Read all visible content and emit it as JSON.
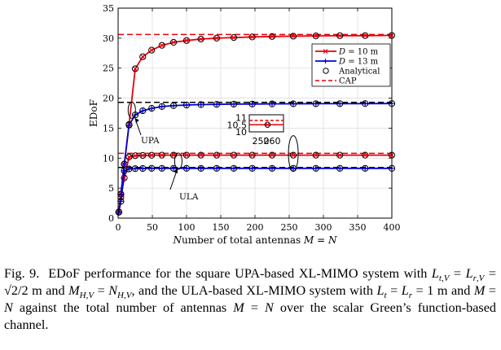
{
  "figure": {
    "caption_prefix": "Fig. 9.",
    "caption_html": "EDoF performance for the square UPA-based XL-MIMO system with <i>L</i><sub><i>t</i>,<i>V</i></sub> = <i>L</i><sub><i>r</i>,<i>V</i></sub> = √2/2 m and <i>M</i><sub><i>H</i>,<i>V</i></sub> = <i>N</i><sub><i>H</i>,<i>V</i></sub>, and the ULA-based XL-MIMO system with <i>L<sub>t</sub></i> = <i>L<sub>r</sub></i> = 1 m and <i>M</i> = <i>N</i> against the total number of antennas <i>M</i> = <i>N</i> over the scalar Green’s function-based channel."
  },
  "chart_data": {
    "type": "line",
    "title": "",
    "xlabel": "Number of total antennas M = N",
    "ylabel": "EDoF",
    "xlim": [
      0,
      400
    ],
    "ylim": [
      0,
      35
    ],
    "xticks": [
      0,
      50,
      100,
      150,
      200,
      250,
      300,
      350,
      400
    ],
    "yticks": [
      0,
      5,
      10,
      15,
      20,
      25,
      30,
      35
    ],
    "grid": true,
    "legend_placement": "upper-right (inside)",
    "legend": [
      {
        "label": "D = 10 m",
        "style": "red line, x marker"
      },
      {
        "label": "D = 13 m",
        "style": "blue line, + marker"
      },
      {
        "label": "Analytical",
        "style": "black circle"
      },
      {
        "label": "CAP",
        "style": "dashed line"
      }
    ],
    "series": [
      {
        "group": "UPA",
        "distance": "D = 10 m",
        "color": "#e8000b",
        "x": [
          1,
          4,
          9,
          16,
          25,
          36,
          49,
          64,
          81,
          100,
          121,
          144,
          169,
          196,
          225,
          256,
          289,
          324,
          361,
          400
        ],
        "y": [
          1,
          4,
          9,
          15.6,
          24.9,
          26.9,
          28.0,
          28.8,
          29.3,
          29.6,
          29.85,
          30.0,
          30.1,
          30.2,
          30.28,
          30.33,
          30.37,
          30.4,
          30.42,
          30.45
        ]
      },
      {
        "group": "UPA",
        "distance": "D = 13 m",
        "color": "#0000dd",
        "x": [
          1,
          4,
          9,
          16,
          25,
          36,
          49,
          64,
          81,
          100,
          121,
          144,
          169,
          196,
          225,
          256,
          289,
          324,
          361,
          400
        ],
        "y": [
          1,
          4,
          9,
          15.5,
          17.2,
          17.9,
          18.3,
          18.6,
          18.75,
          18.85,
          18.92,
          18.96,
          19.0,
          19.02,
          19.04,
          19.06,
          19.07,
          19.08,
          19.09,
          19.1
        ]
      },
      {
        "group": "ULA",
        "distance": "D = 10 m",
        "color": "#e8000b",
        "x": [
          1,
          4,
          9,
          16,
          25,
          36,
          49,
          64,
          81,
          100,
          121,
          144,
          169,
          196,
          225,
          256,
          289,
          324,
          361,
          400
        ],
        "y": [
          1,
          3.5,
          6.7,
          10.2,
          10.4,
          10.45,
          10.48,
          10.5,
          10.5,
          10.5,
          10.5,
          10.5,
          10.5,
          10.5,
          10.5,
          10.5,
          10.5,
          10.5,
          10.5,
          10.5
        ]
      },
      {
        "group": "ULA",
        "distance": "D = 13 m",
        "color": "#0000dd",
        "x": [
          1,
          4,
          9,
          16,
          25,
          36,
          49,
          64,
          81,
          100,
          121,
          144,
          169,
          196,
          225,
          256,
          289,
          324,
          361,
          400
        ],
        "y": [
          1,
          2.8,
          7.9,
          8.2,
          8.25,
          8.28,
          8.3,
          8.3,
          8.3,
          8.3,
          8.3,
          8.3,
          8.3,
          8.3,
          8.3,
          8.3,
          8.3,
          8.3,
          8.3,
          8.3
        ]
      }
    ],
    "cap_lines": [
      {
        "group": "UPA",
        "distance": "D = 10 m",
        "y": 30.6,
        "color": "#e8000b"
      },
      {
        "group": "UPA",
        "distance": "D = 13 m",
        "y": 19.3,
        "color": "#000000"
      },
      {
        "group": "ULA",
        "distance": "D = 10 m",
        "y": 10.8,
        "color": "#e8000b"
      },
      {
        "group": "ULA",
        "distance": "D = 13 m",
        "y": 8.45,
        "color": "#000000"
      }
    ],
    "annotations": [
      {
        "text": "UPA",
        "points_to_x": 20,
        "points_to_y": 18
      },
      {
        "text": "ULA",
        "points_to_x": 88,
        "points_to_y": 9.5
      }
    ],
    "inset": {
      "xlim": [
        240,
        270
      ],
      "ylim": [
        10,
        11.2
      ],
      "xticks": [
        250,
        260
      ],
      "yticks": [
        10,
        10.5,
        11
      ],
      "ytick_labels": [
        "10",
        "10.5",
        "11"
      ],
      "points": [
        {
          "x": 256,
          "y": 10.5
        }
      ],
      "cap_y": 10.8,
      "zoom_region_x": 256,
      "zoom_region_y": 10.5
    }
  }
}
